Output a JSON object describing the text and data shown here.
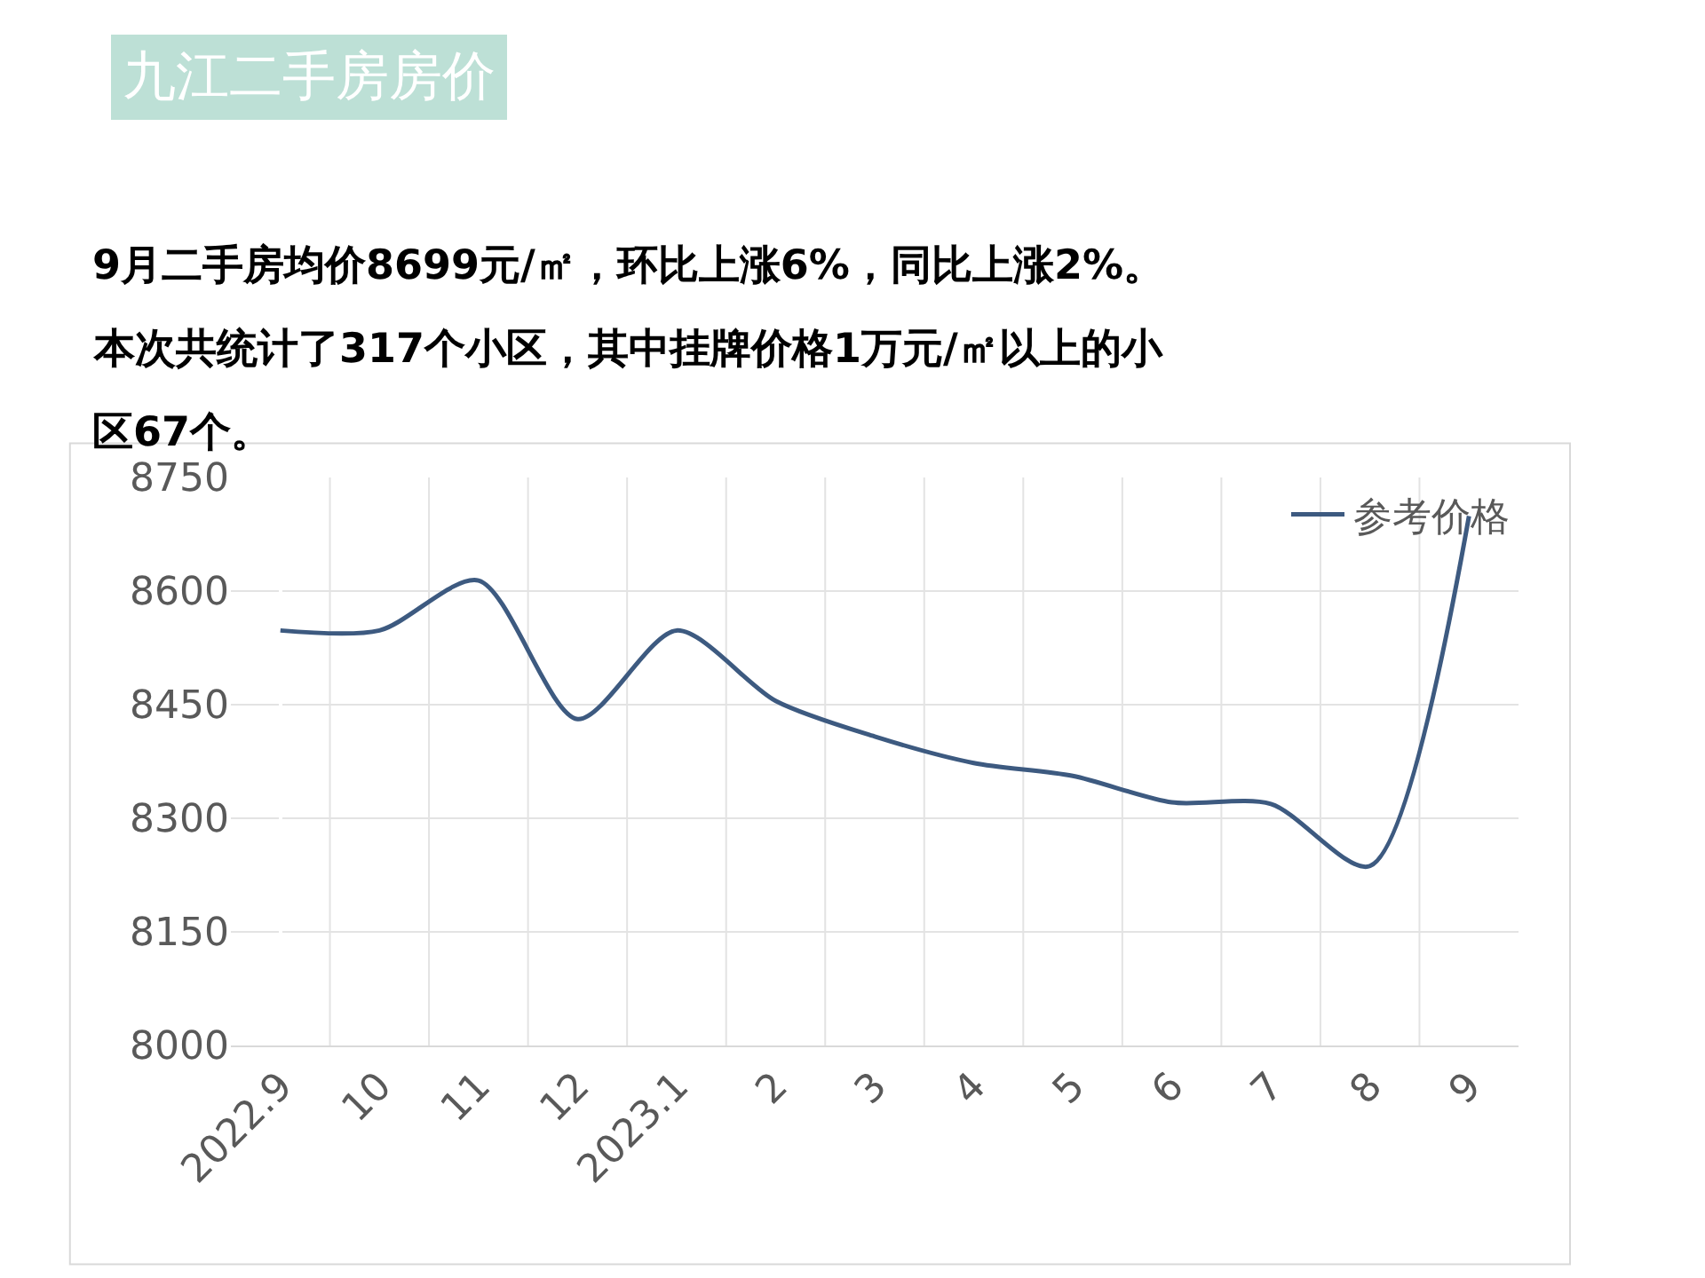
{
  "chart_data": {
    "type": "line",
    "title": "九江二手房房价",
    "subtitle": "9月二手房均价8699元/㎡，环比上涨6%，同比上涨2%。本次共统计了317个小区，其中挂牌价格1万元/㎡以上的小区67个。",
    "categories": [
      "2022.9",
      "10",
      "11",
      "12",
      "2023.1",
      "2",
      "3",
      "4",
      "5",
      "6",
      "7",
      "8",
      "9"
    ],
    "series": [
      {
        "name": "参考价格",
        "color": "#3d5a80",
        "values": [
          8548,
          8548,
          8614,
          8431,
          8548,
          8455,
          8408,
          8373,
          8356,
          8321,
          8319,
          8237,
          8699
        ]
      }
    ],
    "ylim": [
      8000,
      8750
    ],
    "yticks": [
      8000,
      8150,
      8300,
      8450,
      8600,
      8750
    ],
    "grid": true,
    "legend": "top right",
    "marker": "none",
    "line_style": "solid"
  }
}
